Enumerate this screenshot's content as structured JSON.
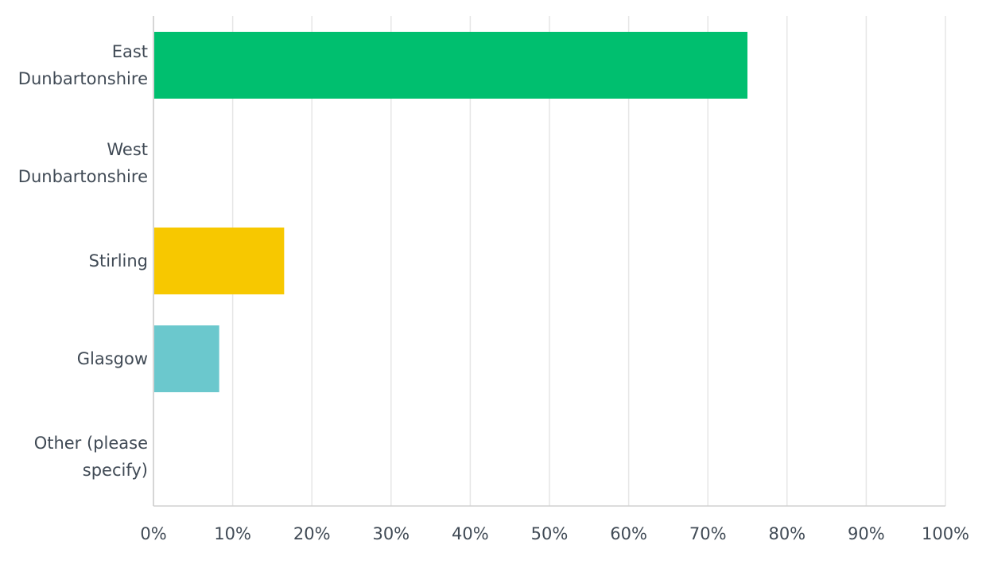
{
  "chart_data": {
    "type": "bar",
    "orientation": "horizontal",
    "categories": [
      [
        "East",
        "Dunbartonshire"
      ],
      [
        "West",
        "Dunbartonshire"
      ],
      [
        "Stirling"
      ],
      [
        "Glasgow"
      ],
      [
        "Other (please",
        "specify)"
      ]
    ],
    "values": [
      75,
      0,
      16.5,
      8.3,
      0
    ],
    "colors": [
      "#00bf6f",
      "#f7c800",
      "#f7c800",
      "#6bc8cd",
      "#00bf6f"
    ],
    "xlim": [
      0,
      100
    ],
    "xticks": [
      "0%",
      "10%",
      "20%",
      "30%",
      "40%",
      "50%",
      "60%",
      "70%",
      "80%",
      "90%",
      "100%"
    ],
    "grid": true,
    "title": "",
    "xlabel": "",
    "ylabel": ""
  }
}
